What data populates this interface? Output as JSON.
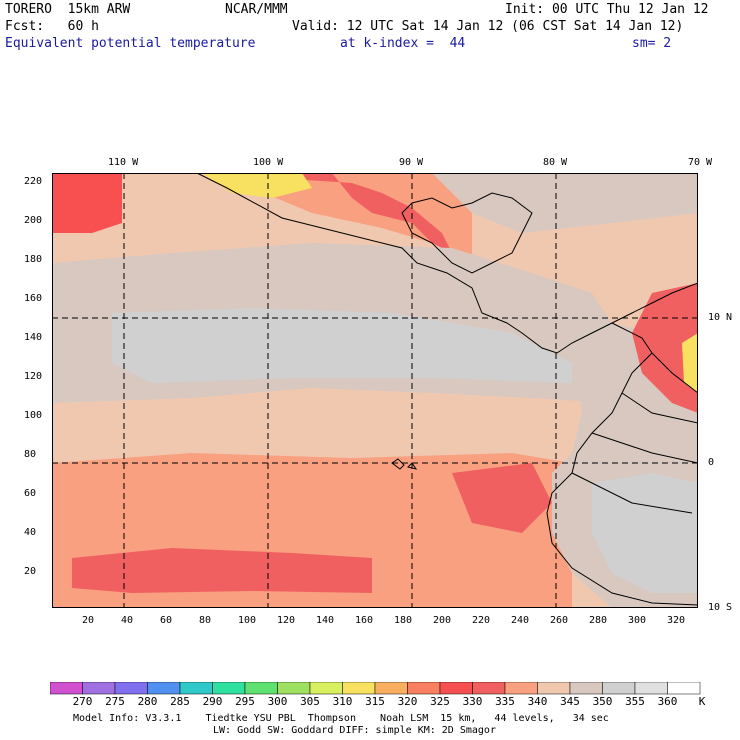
{
  "header": {
    "model": "TORERO  15km ARW",
    "source": "NCAR/MMM",
    "init": "Init: 00 UTC Thu 12 Jan 12",
    "forecast": "Fcst:   60 h",
    "valid": "Valid: 12 UTC Sat 14 Jan 12 (06 CST Sat 14 Jan 12)",
    "field": "Equivalent potential temperature",
    "level": "at k-index =  44",
    "smoothing": "sm= 2"
  },
  "map": {
    "lon_labels": [
      "110 W",
      "100 W",
      "90 W",
      "80 W",
      "70 W"
    ],
    "lat_labels": [
      "10 N",
      "0",
      "10 S"
    ],
    "y_ticks": [
      "220",
      "200",
      "180",
      "160",
      "140",
      "120",
      "100",
      "80",
      "60",
      "40",
      "20"
    ],
    "x_ticks": [
      "20",
      "40",
      "60",
      "80",
      "100",
      "120",
      "140",
      "160",
      "180",
      "200",
      "220",
      "240",
      "260",
      "280",
      "300",
      "320"
    ],
    "grid_color": "#000000",
    "land_outline_color": "#000000"
  },
  "legend": {
    "unit": "K",
    "levels": [
      "270",
      "275",
      "280",
      "285",
      "290",
      "295",
      "300",
      "305",
      "310",
      "315",
      "320",
      "325",
      "330",
      "335",
      "340",
      "345",
      "350",
      "355",
      "360"
    ],
    "colors": [
      "#d050d0",
      "#a070e0",
      "#8070f0",
      "#5090f0",
      "#30c8c8",
      "#30e0a0",
      "#60e070",
      "#a0e060",
      "#d8f060",
      "#f8e060",
      "#f8b060",
      "#f88060",
      "#f85050",
      "#f06060",
      "#f8a080",
      "#f0c8b0",
      "#d8c8c0",
      "#d0d0d0",
      "#e0e0e0",
      "#ffffff"
    ]
  },
  "footer": {
    "line1": "Model Info: V3.3.1    Tiedtke YSU PBL  Thompson    Noah LSM  15 km,   44 levels,   34 sec",
    "line2": "LW: Godd SW: Goddard DIFF: simple KM: 2D Smagor"
  }
}
